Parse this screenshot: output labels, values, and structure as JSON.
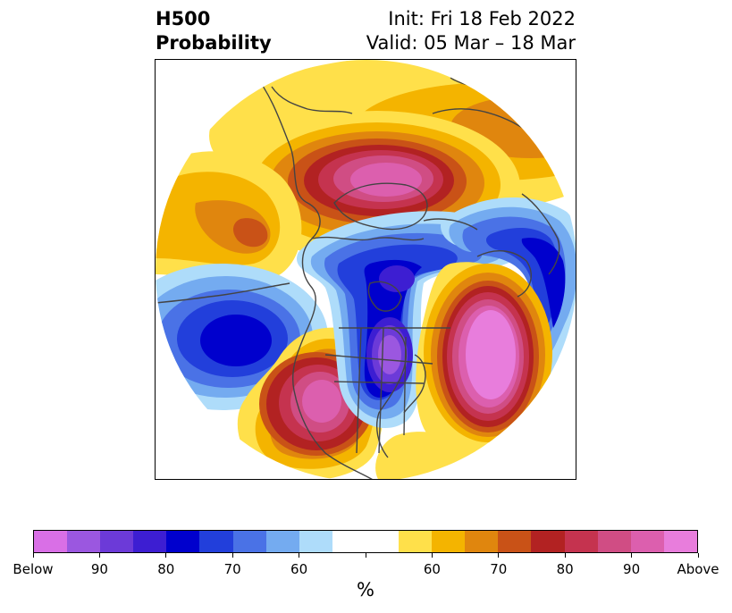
{
  "title": {
    "left_line1": "H500",
    "left_line2": "Probability",
    "right_line1": "Init: Fri 18 Feb 2022",
    "right_line2": "Valid: 05 Mar – 18 Mar"
  },
  "map": {
    "projection": "north-polar-stereographic",
    "coastline_color": "#444444",
    "anomalies": [
      {
        "name": "above-normal-eastern-canada-hudson-bay",
        "category": "above",
        "peak_pct": 90
      },
      {
        "name": "above-normal-western-us",
        "category": "above",
        "peak_pct": 90
      },
      {
        "name": "above-normal-north-atlantic",
        "category": "above",
        "peak_pct": 100
      },
      {
        "name": "above-normal-gulf-of-alaska-arc",
        "category": "above",
        "peak_pct": 70
      },
      {
        "name": "above-normal-northern-arctic",
        "category": "above",
        "peak_pct": 70
      },
      {
        "name": "below-normal-north-pacific",
        "category": "below",
        "peak_pct": 80
      },
      {
        "name": "below-normal-great-lakes",
        "category": "below",
        "peak_pct": 90
      },
      {
        "name": "below-normal-northern-europe",
        "category": "below",
        "peak_pct": 80
      }
    ]
  },
  "colorbar": {
    "unit_label": "%",
    "colors": [
      "#d96fe6",
      "#9b57e0",
      "#6c3ad8",
      "#3d1ed2",
      "#0000cd",
      "#223fdb",
      "#4a72e6",
      "#74abf0",
      "#aedcfa",
      "#ffffff",
      "#ffffff",
      "#ffe04a",
      "#f4b400",
      "#e0860e",
      "#c95217",
      "#b22222",
      "#c5334f",
      "#d04d84",
      "#dc5fae",
      "#e87ddc"
    ],
    "tick_labels": [
      "Below",
      "90",
      "80",
      "70",
      "60",
      "",
      "60",
      "70",
      "80",
      "90",
      "Above"
    ]
  }
}
